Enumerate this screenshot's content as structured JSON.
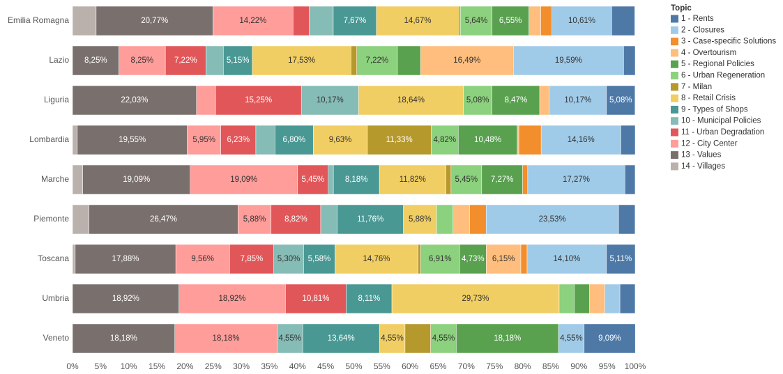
{
  "chart_data": {
    "type": "stacked_bar_horizontal",
    "legend_title": "Topic",
    "categories": [
      "Emilia Romagna",
      "Lazio",
      "Liguria",
      "Lombardia",
      "Marche",
      "Piemonte",
      "Toscana",
      "Umbria",
      "Veneto"
    ],
    "series": [
      {
        "name": "1 - Rents",
        "color": "#4e79a7",
        "values": [
          4.1,
          2.06,
          5.08,
          2.55,
          1.82,
          2.94,
          5.11,
          2.7,
          9.09
        ],
        "value_labels": [
          null,
          null,
          "5,08%",
          null,
          null,
          null,
          "5,11%",
          null,
          "9,09%"
        ]
      },
      {
        "name": "2 - Closures",
        "color": "#a0cbe8",
        "values": [
          10.61,
          19.59,
          10.17,
          14.16,
          17.27,
          23.53,
          14.1,
          2.7,
          4.55
        ],
        "value_labels": [
          "10,61%",
          "19,59%",
          "10,17%",
          "14,16%",
          "17,27%",
          "23,53%",
          "14,10%",
          null,
          "4,55%"
        ]
      },
      {
        "name": "3 - Case-specific Solutions",
        "color": "#f28e2b",
        "values": [
          2.0,
          0,
          0,
          3.97,
          0.91,
          2.94,
          1.11,
          0,
          0
        ],
        "value_labels": [
          null,
          null,
          null,
          null,
          null,
          null,
          null,
          null,
          null
        ]
      },
      {
        "name": "4 - Overtourism",
        "color": "#ffbe7d",
        "values": [
          2.1,
          16.49,
          1.69,
          0.28,
          0,
          2.94,
          6.15,
          2.7,
          0
        ],
        "value_labels": [
          null,
          "16,49%",
          null,
          null,
          null,
          null,
          "6,15%",
          null,
          null
        ]
      },
      {
        "name": "5 - Regional Policies",
        "color": "#59a14f",
        "values": [
          6.55,
          4.12,
          8.47,
          10.48,
          7.27,
          0,
          4.73,
          2.7,
          18.18
        ],
        "value_labels": [
          "6,55%",
          null,
          "8,47%",
          "10,48%",
          "7,27%",
          null,
          "4,73%",
          null,
          "18,18%"
        ]
      },
      {
        "name": "6 - Urban Regeneration",
        "color": "#8cd17d",
        "values": [
          5.64,
          7.22,
          5.08,
          4.82,
          5.45,
          2.94,
          6.91,
          2.7,
          4.55
        ],
        "value_labels": [
          "5,64%",
          "7,22%",
          "5,08%",
          "4,82%",
          "5,45%",
          null,
          "6,91%",
          null,
          "4,55%"
        ]
      },
      {
        "name": "7 - Milan",
        "color": "#b6992d",
        "values": [
          0.25,
          1.03,
          0,
          11.33,
          0.91,
          0,
          0.48,
          0,
          4.55
        ],
        "value_labels": [
          null,
          null,
          null,
          "11,33%",
          null,
          null,
          null,
          null,
          null
        ]
      },
      {
        "name": "8 - Retail Crisis",
        "color": "#f1ce63",
        "values": [
          14.67,
          17.53,
          18.64,
          9.63,
          11.82,
          5.88,
          14.76,
          29.73,
          4.55
        ],
        "value_labels": [
          "14,67%",
          "17,53%",
          "18,64%",
          "9,63%",
          "11,82%",
          "5,88%",
          "14,76%",
          "29,73%",
          "4,55%"
        ]
      },
      {
        "name": "9 - Types of Shops",
        "color": "#499894",
        "values": [
          7.67,
          5.15,
          0,
          6.8,
          8.18,
          11.76,
          5.58,
          8.11,
          13.64
        ],
        "value_labels": [
          "7,67%",
          "5,15%",
          null,
          "6,80%",
          "8,18%",
          "11,76%",
          "5,58%",
          "8,11%",
          "13,64%"
        ]
      },
      {
        "name": "10 - Municipal Policies",
        "color": "#86bcb6",
        "values": [
          4.3,
          3.09,
          10.17,
          3.4,
          0.91,
          2.94,
          5.3,
          0,
          4.55
        ],
        "value_labels": [
          null,
          null,
          "10,17%",
          null,
          null,
          null,
          "5,30%",
          null,
          "4,55%"
        ]
      },
      {
        "name": "11 - Urban Degradation",
        "color": "#e15759",
        "values": [
          2.85,
          7.22,
          15.25,
          6.23,
          5.45,
          8.82,
          7.85,
          10.81,
          0
        ],
        "value_labels": [
          null,
          "7,22%",
          "15,25%",
          "6,23%",
          "5,45%",
          "8,82%",
          "7,85%",
          "10,81%",
          null
        ]
      },
      {
        "name": "12 - City Center",
        "color": "#ff9d9a",
        "values": [
          14.22,
          8.25,
          3.39,
          5.95,
          19.09,
          5.88,
          9.56,
          18.92,
          18.18
        ],
        "value_labels": [
          "14,22%",
          "8,25%",
          null,
          "5,95%",
          "19,09%",
          "5,88%",
          "9,56%",
          "18,92%",
          "18,18%"
        ]
      },
      {
        "name": "13 - Values",
        "color": "#79706e",
        "values": [
          20.77,
          8.25,
          22.03,
          19.55,
          19.09,
          26.47,
          17.88,
          18.92,
          18.18
        ],
        "value_labels": [
          "20,77%",
          "8,25%",
          "22,03%",
          "19,55%",
          "19,09%",
          "26,47%",
          "17,88%",
          "18,92%",
          "18,18%"
        ]
      },
      {
        "name": "14 - Villages",
        "color": "#bab0ac",
        "values": [
          4.2,
          0,
          0,
          0.85,
          1.82,
          2.94,
          0.48,
          0,
          0
        ],
        "value_labels": [
          null,
          null,
          null,
          null,
          null,
          null,
          null,
          null,
          null
        ]
      }
    ],
    "xlim": [
      0,
      100
    ],
    "xticks": [
      {
        "value": 0,
        "label": "0%"
      },
      {
        "value": 5,
        "label": "5%"
      },
      {
        "value": 10,
        "label": "10%"
      },
      {
        "value": 15,
        "label": "15%"
      },
      {
        "value": 20,
        "label": "20%"
      },
      {
        "value": 25,
        "label": "25%"
      },
      {
        "value": 30,
        "label": "30%"
      },
      {
        "value": 35,
        "label": "35%"
      },
      {
        "value": 40,
        "label": "40%"
      },
      {
        "value": 45,
        "label": "45%"
      },
      {
        "value": 50,
        "label": "50%"
      },
      {
        "value": 55,
        "label": "55%"
      },
      {
        "value": 60,
        "label": "60%"
      },
      {
        "value": 65,
        "label": "65%"
      },
      {
        "value": 70,
        "label": "70%"
      },
      {
        "value": 75,
        "label": "75%"
      },
      {
        "value": 80,
        "label": "80%"
      },
      {
        "value": 85,
        "label": "85%"
      },
      {
        "value": 90,
        "label": "90%"
      },
      {
        "value": 95,
        "label": "95%"
      },
      {
        "value": 100,
        "label": "100%"
      }
    ],
    "legend_position": "right"
  }
}
